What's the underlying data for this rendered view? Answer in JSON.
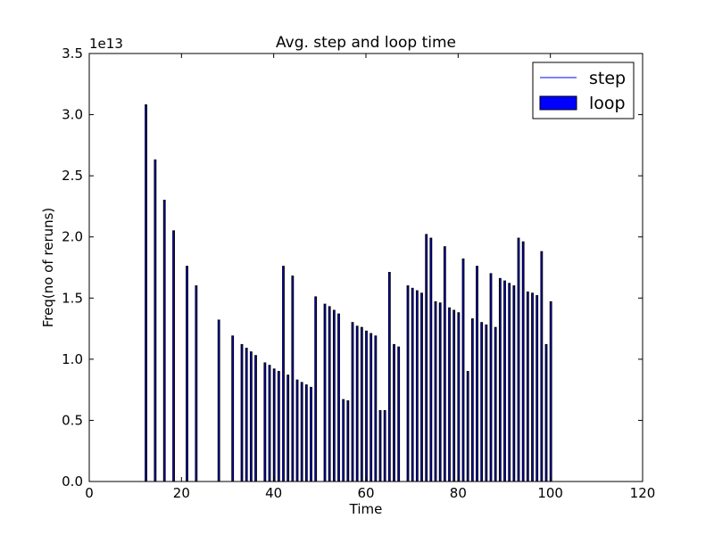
{
  "chart_data": {
    "type": "bar",
    "title": "Avg. step and loop time",
    "xlabel": "Time",
    "ylabel": "Freq(no of reruns)",
    "offset_label": "1e13",
    "xlim": [
      0,
      120
    ],
    "ylim": [
      0,
      35000000000000.0
    ],
    "xticks": [
      0,
      20,
      40,
      60,
      80,
      100,
      120
    ],
    "xtick_labels": [
      "0",
      "20",
      "40",
      "60",
      "80",
      "100",
      "120"
    ],
    "yticks": [
      0,
      5000000000000.0,
      10000000000000.0,
      15000000000000.0,
      20000000000000.0,
      25000000000000.0,
      30000000000000.0,
      35000000000000.0
    ],
    "ytick_labels": [
      "0.0",
      "0.5",
      "1.0",
      "1.5",
      "2.0",
      "2.5",
      "3.0",
      "3.5"
    ],
    "grid": false,
    "legend_position": "top-right",
    "series": [
      {
        "name": "step",
        "kind": "line",
        "color": "#0000ff",
        "x": [
          1,
          12,
          12.1,
          14,
          14.1,
          16,
          16.1
        ],
        "values": [
          0,
          0,
          0,
          0,
          0,
          0,
          0
        ]
      },
      {
        "name": "loop",
        "kind": "bar",
        "color": "#0000ff",
        "edge_color": "#000000",
        "x": [
          12.3,
          14.3,
          16.3,
          18.3,
          21.2,
          23.2,
          28.1,
          31.1,
          33.1,
          34.1,
          35.1,
          36.1,
          38.1,
          39.1,
          40.1,
          41.1,
          42.1,
          43.1,
          44.1,
          45.1,
          46.1,
          47.1,
          48.1,
          49.1,
          51.1,
          52.1,
          53.1,
          54.1,
          55.1,
          56.1,
          57.1,
          58.1,
          59.1,
          60.1,
          61.1,
          62.1,
          63.1,
          64.1,
          65.1,
          66.1,
          67.1,
          69.1,
          70.1,
          71.1,
          72.1,
          73.1,
          74.1,
          75.1,
          76.1,
          77.1,
          78.1,
          79.1,
          80.1,
          81.1,
          82.1,
          83.1,
          84.1,
          85.1,
          86.1,
          87.1,
          88.1,
          89.1,
          90.1,
          91.1,
          92.1,
          93.1,
          94.1,
          95.1,
          96.1,
          97.1,
          98.1,
          99.1,
          100.1
        ],
        "values": [
          30800000000000.0,
          26300000000000.0,
          23000000000000.0,
          20500000000000.0,
          17600000000000.0,
          16000000000000.0,
          13200000000000.0,
          11900000000000.0,
          11200000000000.0,
          10900000000000.0,
          10600000000000.0,
          10300000000000.0,
          9700000000000.0,
          9500000000000.0,
          9200000000000.0,
          9000000000000.0,
          17600000000000.0,
          8700000000000.0,
          16800000000000.0,
          8300000000000.0,
          8100000000000.0,
          7900000000000.0,
          7700000000000.0,
          15100000000000.0,
          14500000000000.0,
          14300000000000.0,
          14000000000000.0,
          13700000000000.0,
          6700000000000.0,
          6600000000000.0,
          13000000000000.0,
          12700000000000.0,
          12600000000000.0,
          12300000000000.0,
          12100000000000.0,
          11900000000000.0,
          5800000000000.0,
          5800000000000.0,
          17100000000000.0,
          11200000000000.0,
          11000000000000.0,
          16000000000000.0,
          15800000000000.0,
          15600000000000.0,
          15400000000000.0,
          20200000000000.0,
          19900000000000.0,
          14700000000000.0,
          14600000000000.0,
          19200000000000.0,
          14200000000000.0,
          14000000000000.0,
          13800000000000.0,
          18200000000000.0,
          9000000000000.0,
          13300000000000.0,
          17600000000000.0,
          13000000000000.0,
          12800000000000.0,
          17000000000000.0,
          12600000000000.0,
          16600000000000.0,
          16400000000000.0,
          16200000000000.0,
          16000000000000.0,
          19900000000000.0,
          19600000000000.0,
          15500000000000.0,
          15400000000000.0,
          15200000000000.0,
          18800000000000.0,
          11200000000000.0,
          14700000000000.0
        ]
      }
    ]
  }
}
